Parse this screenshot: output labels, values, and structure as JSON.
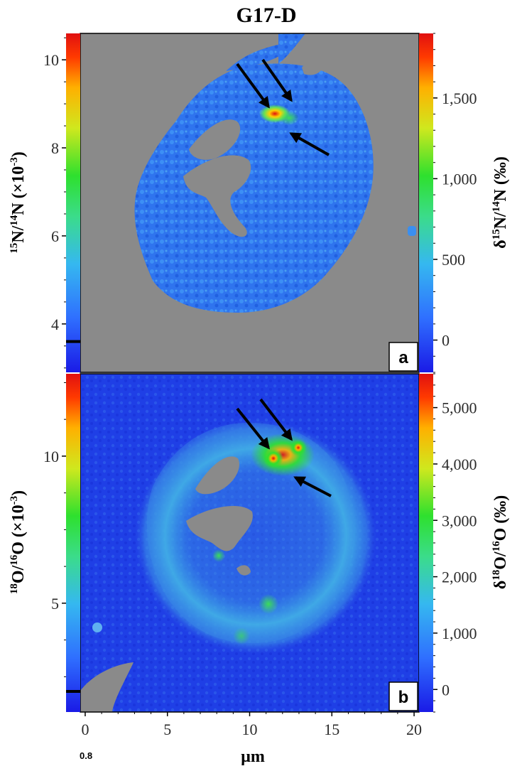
{
  "title": "G17-D",
  "chart_data": [
    {
      "type": "heatmap",
      "panel_label": "a",
      "left_axis_label": {
        "base": "N/",
        "base2": "N (×10",
        "sup1": "15",
        "sup2": "14",
        "sup3": "-3",
        "tail": ")"
      },
      "right_axis_label": {
        "prefix": "δ",
        "sup1": "15",
        "mid": "N/",
        "sup2": "14",
        "tail": "N (‰)"
      },
      "left_ticks": [
        "10",
        "8",
        "6",
        "4"
      ],
      "left_tick_values": [
        10,
        8,
        6,
        4
      ],
      "left_range": [
        2.9,
        10.6
      ],
      "left_marker_value": 3.6,
      "right_ticks": [
        "1,500",
        "1,000",
        "500",
        "0"
      ],
      "right_tick_values": [
        1500,
        1000,
        500,
        0
      ],
      "right_range": [
        -200,
        1900
      ],
      "hotspot_arrows": 3
    },
    {
      "type": "heatmap",
      "panel_label": "b",
      "left_axis_label": {
        "base": "O/",
        "base2": "O (×10",
        "sup1": "18",
        "sup2": "16",
        "sup3": "-3",
        "tail": ")"
      },
      "right_axis_label": {
        "prefix": "δ",
        "sup1": "18",
        "mid": "O/",
        "sup2": "16",
        "tail": "O (‰)"
      },
      "left_ticks": [
        "10",
        "5"
      ],
      "left_tick_values": [
        10,
        5
      ],
      "left_range": [
        1.3,
        12.8
      ],
      "left_marker_value": 2.0,
      "right_ticks": [
        "5,000",
        "4,000",
        "3,000",
        "2,000",
        "1,000",
        "0"
      ],
      "right_tick_values": [
        5000,
        4000,
        3000,
        2000,
        1000,
        0
      ],
      "right_range": [
        -400,
        5600
      ],
      "hotspot_arrows": 3
    }
  ],
  "x_axis": {
    "label": "µm",
    "ticks": [
      "0",
      "5",
      "10",
      "15",
      "20"
    ],
    "tick_values": [
      0,
      5,
      10,
      15,
      20
    ],
    "range": [
      -0.3,
      20.3
    ]
  },
  "corner_note": "0.8",
  "colors": {
    "background_mask": "#8a8a8a",
    "colormap": [
      "#1a1ae6",
      "#2f6fff",
      "#35b8f0",
      "#3bdc8a",
      "#2ee02e",
      "#cfe81e",
      "#ffb000",
      "#ff3a00",
      "#e01010"
    ]
  }
}
